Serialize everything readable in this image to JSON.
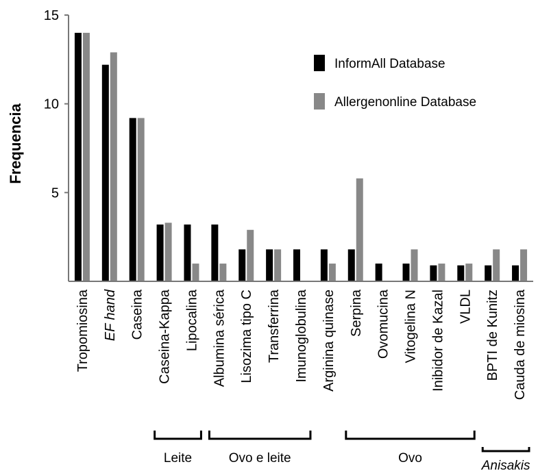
{
  "chart_data": {
    "type": "bar",
    "title": "",
    "xlabel": "",
    "ylabel": "Frequencia",
    "ylim": [
      0,
      15
    ],
    "yticks": [
      5,
      10,
      15
    ],
    "grid": false,
    "legend_position": "top-right",
    "categories": [
      "Tropomiosina",
      "EF hand",
      "Caseina",
      "Caseina-Kappa",
      "Lipocalina",
      "Albumina sérica",
      "Lisozima tipo C",
      "Transferrina",
      "Imunoglobulina",
      "Arginina quinase",
      "Serpina",
      "Ovomucina",
      "Vitogelina N",
      "Inibidor de Kazal",
      "VLDL",
      "BPTI de Kunitz",
      "Cauda de miosina"
    ],
    "italic_categories": [
      "EF hand"
    ],
    "series": [
      {
        "name": "InformAll Database",
        "color": "#000000",
        "values": [
          14,
          12.2,
          9.2,
          3.2,
          3.2,
          3.2,
          1.8,
          1.8,
          1.8,
          1.8,
          1.8,
          1.0,
          1.0,
          0.9,
          0.9,
          0.9,
          0.9
        ]
      },
      {
        "name": "Allergenonline Database",
        "color": "#888888",
        "values": [
          14,
          12.9,
          9.2,
          3.3,
          1.0,
          1.0,
          2.9,
          1.8,
          0,
          1.0,
          5.8,
          0,
          1.8,
          1.0,
          1.0,
          1.8,
          1.8
        ]
      }
    ],
    "groups": [
      {
        "label": "Leite",
        "start": 3,
        "end": 4
      },
      {
        "label": "Ovo e leite",
        "start": 5,
        "end": 8
      },
      {
        "label": "Ovo",
        "start": 10,
        "end": 14
      },
      {
        "label": "Anisakis",
        "start": 15,
        "end": 16,
        "italic": true
      }
    ]
  }
}
